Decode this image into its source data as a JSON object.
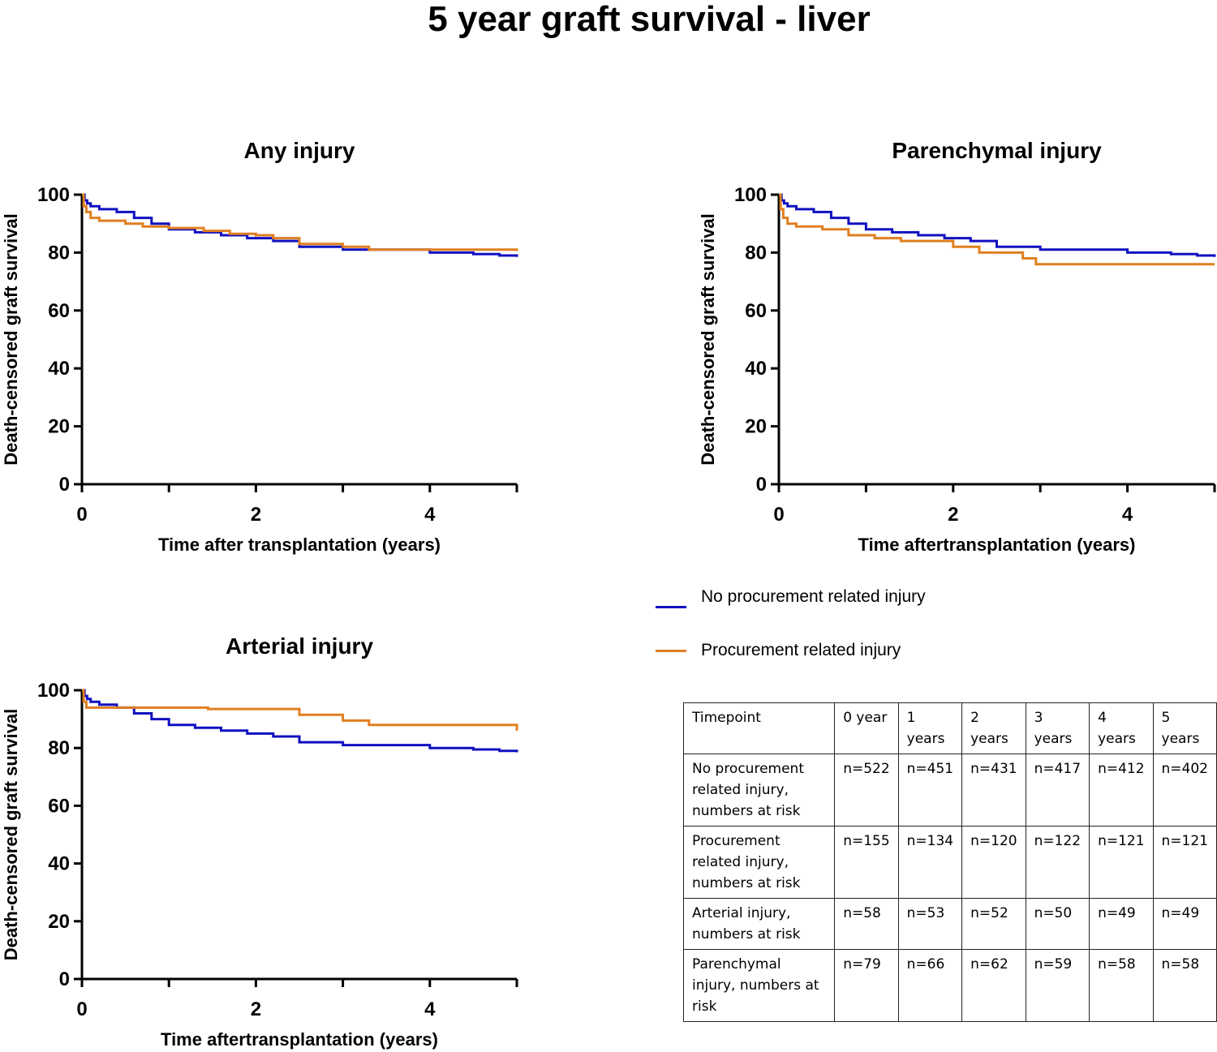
{
  "title": "5 year graft survival - liver",
  "colors": {
    "no_injury": "#1010c0",
    "injury": "#e07f20",
    "axis": "#000000"
  },
  "legend": {
    "items": [
      {
        "label": "No procurement related injury",
        "color": "#1010c0"
      },
      {
        "label": "Procurement related injury",
        "color": "#e07f20"
      }
    ]
  },
  "chart_data": [
    {
      "type": "line",
      "step": true,
      "title": "Any injury",
      "xlabel": "Time after transplantation (years)",
      "ylabel": "Death-censored graft survival",
      "xlim": [
        0,
        5
      ],
      "ylim": [
        0,
        100
      ],
      "xticks": [
        0,
        2,
        4
      ],
      "yticks": [
        0,
        20,
        40,
        60,
        80,
        100
      ],
      "series": [
        {
          "name": "No procurement related injury",
          "color": "#1010c0",
          "x": [
            0,
            0.03,
            0.06,
            0.1,
            0.2,
            0.4,
            0.6,
            0.8,
            1.0,
            1.3,
            1.6,
            1.9,
            2.2,
            2.5,
            3.0,
            3.5,
            4.0,
            4.5,
            4.8,
            5.0
          ],
          "y": [
            100,
            98,
            97,
            96,
            95,
            94,
            92,
            90,
            88,
            87,
            86,
            85,
            84,
            82,
            81,
            81,
            80,
            79.5,
            79,
            78.5
          ]
        },
        {
          "name": "Procurement related injury",
          "color": "#e07f20",
          "x": [
            0,
            0.02,
            0.05,
            0.1,
            0.2,
            0.5,
            0.7,
            1.0,
            1.4,
            1.7,
            2.0,
            2.2,
            2.5,
            3.0,
            3.3,
            5.0
          ],
          "y": [
            100,
            96,
            94,
            92,
            91,
            90,
            89,
            88.5,
            87.5,
            86.5,
            86,
            85,
            83,
            82,
            81,
            80.5
          ]
        }
      ]
    },
    {
      "type": "line",
      "step": true,
      "title": "Parenchymal injury",
      "xlabel": "Time aftertransplantation (years)",
      "ylabel": "Death-censored graft survival",
      "xlim": [
        0,
        5
      ],
      "ylim": [
        0,
        100
      ],
      "xticks": [
        0,
        2,
        4
      ],
      "yticks": [
        0,
        20,
        40,
        60,
        80,
        100
      ],
      "series": [
        {
          "name": "No procurement related injury",
          "color": "#1010c0",
          "x": [
            0,
            0.03,
            0.06,
            0.1,
            0.2,
            0.4,
            0.6,
            0.8,
            1.0,
            1.3,
            1.6,
            1.9,
            2.2,
            2.5,
            3.0,
            3.5,
            4.0,
            4.5,
            4.8,
            5.0
          ],
          "y": [
            100,
            98,
            97,
            96,
            95,
            94,
            92,
            90,
            88,
            87,
            86,
            85,
            84,
            82,
            81,
            81,
            80,
            79.5,
            79,
            78.5
          ]
        },
        {
          "name": "Procurement related injury",
          "color": "#e07f20",
          "x": [
            0,
            0.02,
            0.05,
            0.1,
            0.2,
            0.5,
            0.8,
            1.1,
            1.4,
            2.0,
            2.3,
            2.8,
            2.95,
            5.0
          ],
          "y": [
            100,
            95,
            92,
            90,
            89,
            88,
            86,
            85,
            84,
            82,
            80,
            78,
            76,
            76
          ]
        }
      ]
    },
    {
      "type": "line",
      "step": true,
      "title": "Arterial injury",
      "xlabel": "Time aftertransplantation (years)",
      "ylabel": "Death-censored graft survival",
      "xlim": [
        0,
        5
      ],
      "ylim": [
        0,
        100
      ],
      "xticks": [
        0,
        2,
        4
      ],
      "yticks": [
        0,
        20,
        40,
        60,
        80,
        100
      ],
      "series": [
        {
          "name": "No procurement related injury",
          "color": "#1010c0",
          "x": [
            0,
            0.03,
            0.06,
            0.1,
            0.2,
            0.4,
            0.6,
            0.8,
            1.0,
            1.3,
            1.6,
            1.9,
            2.2,
            2.5,
            3.0,
            3.5,
            4.0,
            4.5,
            4.8,
            5.0
          ],
          "y": [
            100,
            98,
            97,
            96,
            95,
            94,
            92,
            90,
            88,
            87,
            86,
            85,
            84,
            82,
            81,
            81,
            80,
            79.5,
            79,
            78.5
          ]
        },
        {
          "name": "Procurement related injury",
          "color": "#e07f20",
          "x": [
            0,
            0.02,
            0.05,
            1.45,
            2.5,
            3.0,
            3.3,
            5.0
          ],
          "y": [
            100,
            96,
            94,
            93.5,
            91.5,
            89.5,
            88,
            86
          ]
        }
      ]
    }
  ],
  "risk_table": {
    "headers": [
      "Timepoint",
      "0 year",
      "1 years",
      "2 years",
      "3 years",
      "4 years",
      "5 years"
    ],
    "rows": [
      {
        "label": "No procurement related injury, numbers at risk",
        "values": [
          "n=522",
          "n=451",
          "n=431",
          "n=417",
          "n=412",
          "n=402"
        ]
      },
      {
        "label": "Procurement related injury, numbers at risk",
        "values": [
          "n=155",
          "n=134",
          "n=120",
          "n=122",
          "n=121",
          "n=121"
        ]
      },
      {
        "label": "Arterial injury, numbers at risk",
        "values": [
          "n=58",
          "n=53",
          "n=52",
          "n=50",
          "n=49",
          "n=49"
        ]
      },
      {
        "label": "Parenchymal injury, numbers at risk",
        "values": [
          "n=79",
          "n=66",
          "n=62",
          "n=59",
          "n=58",
          "n=58"
        ]
      }
    ]
  }
}
